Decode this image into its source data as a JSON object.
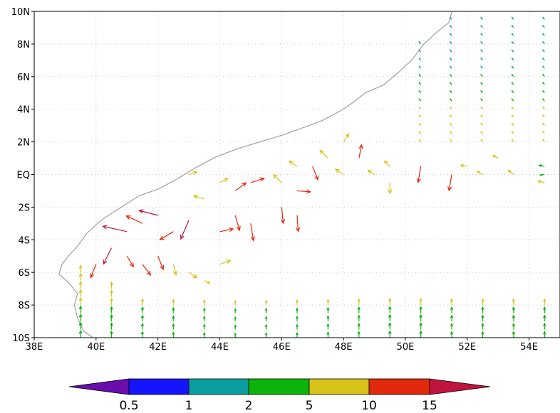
{
  "map": {
    "projection": "lat-lon",
    "lon_range": [
      38,
      55
    ],
    "lat_range": [
      -10,
      10
    ],
    "grid": true,
    "lon_ticks": [
      {
        "value": 38,
        "label": "38E"
      },
      {
        "value": 40,
        "label": "40E"
      },
      {
        "value": 42,
        "label": "42E"
      },
      {
        "value": 44,
        "label": "44E"
      },
      {
        "value": 46,
        "label": "46E"
      },
      {
        "value": 48,
        "label": "48E"
      },
      {
        "value": 50,
        "label": "50E"
      },
      {
        "value": 52,
        "label": "52E"
      },
      {
        "value": 54,
        "label": "54E"
      }
    ],
    "lat_ticks": [
      {
        "value": 10,
        "label": "10N"
      },
      {
        "value": 8,
        "label": "8N"
      },
      {
        "value": 6,
        "label": "6N"
      },
      {
        "value": 4,
        "label": "4N"
      },
      {
        "value": 2,
        "label": "2N"
      },
      {
        "value": 0,
        "label": "EQ"
      },
      {
        "value": -2,
        "label": "2S"
      },
      {
        "value": -4,
        "label": "4S"
      },
      {
        "value": -6,
        "label": "6S"
      },
      {
        "value": -8,
        "label": "8S"
      },
      {
        "value": -10,
        "label": "10S"
      }
    ],
    "coastline_color": "#a0a0a0",
    "coastline": [
      [
        51.5,
        9.95
      ],
      [
        51.4,
        9.3
      ],
      [
        51.0,
        8.7
      ],
      [
        50.6,
        8.0
      ],
      [
        50.2,
        7.0
      ],
      [
        49.8,
        6.3
      ],
      [
        49.3,
        5.5
      ],
      [
        48.7,
        5.0
      ],
      [
        48.3,
        4.4
      ],
      [
        47.9,
        3.9
      ],
      [
        47.3,
        3.3
      ],
      [
        46.6,
        2.8
      ],
      [
        46.0,
        2.4
      ],
      [
        45.3,
        2.0
      ],
      [
        44.6,
        1.6
      ],
      [
        43.9,
        1.1
      ],
      [
        43.2,
        0.4
      ],
      [
        42.6,
        -0.3
      ],
      [
        42.0,
        -0.9
      ],
      [
        41.4,
        -1.3
      ],
      [
        40.9,
        -1.9
      ],
      [
        40.4,
        -2.5
      ],
      [
        40.1,
        -2.9
      ],
      [
        39.7,
        -3.6
      ],
      [
        39.4,
        -4.4
      ],
      [
        39.1,
        -5.0
      ],
      [
        38.9,
        -5.5
      ],
      [
        38.8,
        -6.1
      ],
      [
        39.1,
        -6.6
      ],
      [
        39.4,
        -7.3
      ],
      [
        39.3,
        -8.0
      ],
      [
        39.4,
        -8.8
      ],
      [
        39.6,
        -9.6
      ],
      [
        39.9,
        -10.0
      ]
    ]
  },
  "vectors": {
    "rows_lat": [
      9,
      8,
      7,
      6,
      5,
      4,
      3,
      2,
      1,
      0,
      -1,
      -2,
      -3,
      -4,
      -5,
      -6,
      -7,
      -8,
      -9,
      -10
    ],
    "note_units": "u,v components in m/s",
    "columns": [
      {
        "lon": 39.5,
        "start_lat": -6,
        "u": 0.0,
        "v": 2.6,
        "profile": "south"
      },
      {
        "lon": 40.5,
        "start_lat": -7,
        "u": 0.0,
        "v": 2.4,
        "profile": "south"
      },
      {
        "lon": 41.5,
        "start_lat": -8,
        "u": 0.0,
        "v": 2.2,
        "profile": "south"
      },
      {
        "lon": 42.5,
        "start_lat": -8,
        "u": 0.0,
        "v": 2.0,
        "profile": "south"
      },
      {
        "lon": 43.5,
        "start_lat": -8,
        "u": 0.0,
        "v": 1.8,
        "profile": "south"
      },
      {
        "lon": 44.5,
        "start_lat": -8,
        "u": 0.0,
        "v": 1.6,
        "profile": "south"
      },
      {
        "lon": 45.5,
        "start_lat": -8,
        "u": 0.0,
        "v": 1.7,
        "profile": "south"
      },
      {
        "lon": 46.5,
        "start_lat": -8,
        "u": 0.0,
        "v": 1.8,
        "profile": "south"
      },
      {
        "lon": 47.5,
        "start_lat": -8,
        "u": 0.0,
        "v": 2.0,
        "profile": "south"
      },
      {
        "lon": 48.5,
        "start_lat": -8,
        "u": 0.0,
        "v": 2.2,
        "profile": "south"
      },
      {
        "lon": 49.5,
        "start_lat": -8,
        "u": 0.0,
        "v": 2.4,
        "profile": "south"
      },
      {
        "lon": 50.5,
        "start_lat": -8,
        "u": 0.0,
        "v": 2.4,
        "profile": "south"
      },
      {
        "lon": 51.5,
        "start_lat": -8,
        "u": 0.0,
        "v": 2.2,
        "profile": "south"
      },
      {
        "lon": 52.5,
        "start_lat": -8,
        "u": 0.0,
        "v": 2.2,
        "profile": "south"
      },
      {
        "lon": 53.5,
        "start_lat": -8,
        "u": 0.0,
        "v": 2.2,
        "profile": "south"
      },
      {
        "lon": 54.5,
        "start_lat": -8,
        "u": 0.0,
        "v": 2.2,
        "profile": "south"
      }
    ],
    "strong_arrows": [
      [
        41.0,
        -3.5,
        -4.5,
        1.0
      ],
      [
        41.5,
        -3.0,
        -3.0,
        1.4
      ],
      [
        42.0,
        -2.5,
        -3.5,
        0.9
      ],
      [
        42.5,
        -3.5,
        -2.5,
        -1.5
      ],
      [
        43.0,
        -2.8,
        -1.5,
        -3.5
      ],
      [
        41.0,
        -5.0,
        1.2,
        -2.0
      ],
      [
        41.5,
        -5.5,
        1.5,
        -2.0
      ],
      [
        42.0,
        -5.0,
        1.0,
        -2.5
      ],
      [
        42.5,
        -5.5,
        0.5,
        -2.0
      ],
      [
        43.0,
        -6.0,
        1.5,
        -1.0
      ],
      [
        43.5,
        -6.5,
        1.0,
        -0.5
      ],
      [
        40.5,
        -4.5,
        -1.5,
        -3.0
      ],
      [
        40.0,
        -5.5,
        -1.0,
        -2.5
      ],
      [
        44.0,
        -3.5,
        2.5,
        0.5
      ],
      [
        44.0,
        -5.5,
        2.0,
        0.7
      ],
      [
        43.5,
        -1.5,
        -2.0,
        0.6
      ],
      [
        44.5,
        -1.0,
        2.0,
        1.5
      ],
      [
        44.5,
        -2.5,
        0.8,
        -2.8
      ],
      [
        45.0,
        -3.0,
        0.5,
        -3.2
      ],
      [
        45.0,
        -0.5,
        2.5,
        0.8
      ],
      [
        44.0,
        -0.5,
        1.5,
        0.8
      ],
      [
        43.0,
        0.0,
        1.5,
        0.5
      ],
      [
        46.0,
        -0.5,
        -1.5,
        1.5
      ],
      [
        46.5,
        0.5,
        -1.5,
        1.0
      ],
      [
        46.5,
        -1.0,
        2.5,
        -0.2
      ],
      [
        46.0,
        -2.0,
        0.3,
        -3.0
      ],
      [
        46.5,
        -2.5,
        0.2,
        -3.0
      ],
      [
        47.0,
        0.5,
        1.0,
        -2.5
      ],
      [
        47.5,
        1.0,
        -1.5,
        1.5
      ],
      [
        48.0,
        0.0,
        -1.5,
        1.0
      ],
      [
        48.5,
        1.0,
        0.5,
        2.5
      ],
      [
        48.0,
        2.0,
        1.0,
        1.5
      ],
      [
        49.0,
        0.0,
        -1.2,
        0.8
      ],
      [
        49.5,
        0.5,
        -1.0,
        1.0
      ],
      [
        49.5,
        -0.5,
        0.0,
        -2.0
      ],
      [
        50.5,
        0.5,
        -0.5,
        -3.0
      ],
      [
        51.5,
        0.0,
        -0.5,
        -3.0
      ],
      [
        52.0,
        0.5,
        -1.2,
        0.2
      ],
      [
        52.5,
        0.0,
        -1.0,
        0.6
      ],
      [
        53.0,
        1.0,
        -1.0,
        0.5
      ],
      [
        53.5,
        0.0,
        -1.0,
        0.8
      ],
      [
        54.5,
        0.5,
        -1.0,
        0.2
      ],
      [
        54.5,
        -0.5,
        -1.2,
        0.3
      ],
      [
        54.5,
        0.0,
        -0.8,
        -0.1
      ]
    ]
  },
  "colorbar": {
    "colors": [
      "#6a0dad",
      "#1414ff",
      "#0a9f9f",
      "#0ab40a",
      "#d7c31a",
      "#e0280a",
      "#c0143c"
    ],
    "labels": [
      "0.5",
      "1",
      "2",
      "5",
      "10",
      "15"
    ]
  }
}
